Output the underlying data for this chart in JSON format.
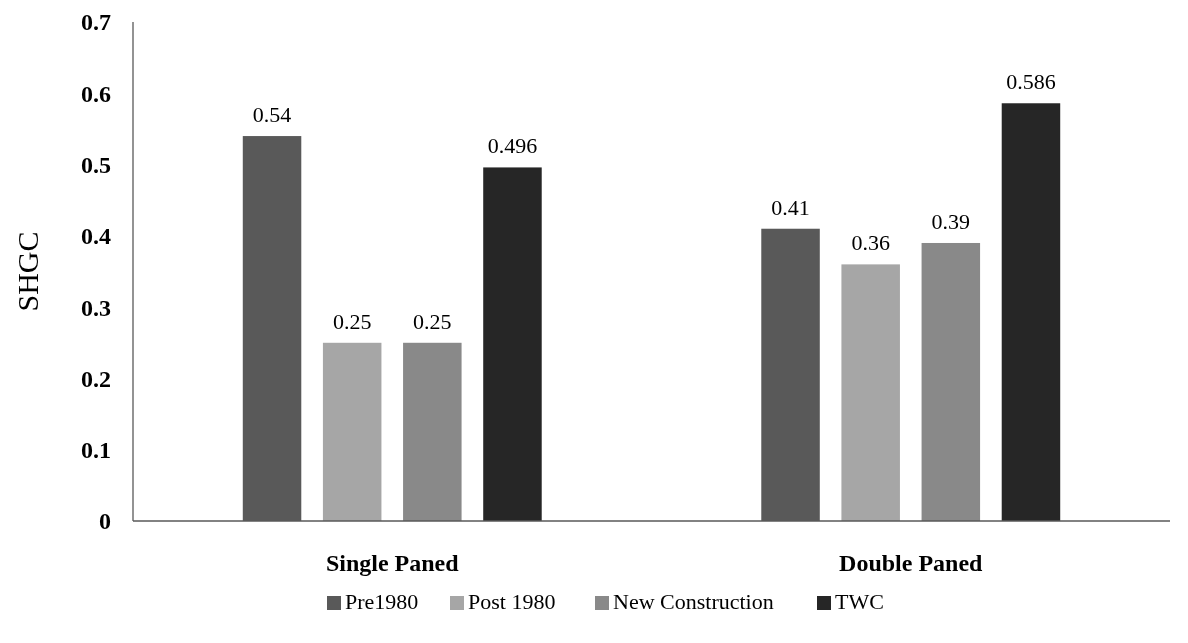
{
  "chart_data": {
    "type": "bar",
    "ylabel": "SHGC",
    "categories": [
      "Single Paned",
      "Double Paned"
    ],
    "series": [
      {
        "name": "Pre1980",
        "color": "#595959",
        "values": [
          0.54,
          0.41
        ]
      },
      {
        "name": "Post 1980",
        "color": "#a6a6a6",
        "values": [
          0.25,
          0.36
        ]
      },
      {
        "name": "New Construction",
        "color": "#898989",
        "values": [
          0.25,
          0.39
        ]
      },
      {
        "name": "TWC",
        "color": "#262626",
        "values": [
          0.496,
          0.586
        ]
      }
    ],
    "ylim": [
      0,
      0.7
    ],
    "yticks": [
      0,
      0.1,
      0.2,
      0.3,
      0.4,
      0.5,
      0.6,
      0.7
    ],
    "grid": false,
    "legend": "bottom",
    "data_labels": true
  }
}
